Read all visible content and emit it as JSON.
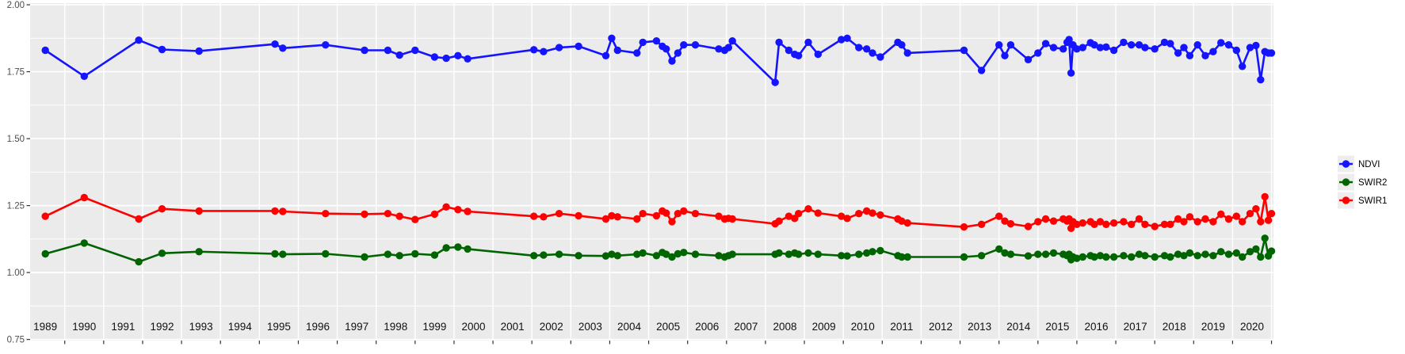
{
  "chart": {
    "panel_bg": "#EBEBEB",
    "grid_color": "#FFFFFF",
    "axis_text_color": "#4D4D4D",
    "x_label_color": "#111111",
    "tick_color": "#333333",
    "legend_key_bg": "#EDEDED",
    "legend_text_color": "#000000"
  },
  "chart_data": {
    "type": "line",
    "title": "",
    "xlabel": "",
    "ylabel": "",
    "grid": true,
    "legend_position": "right",
    "xlim": [
      1988.61,
      2020.55
    ],
    "ylim": [
      0.746,
      2.006
    ],
    "y_ticks": [
      {
        "label": "2.00",
        "value": 2.0
      },
      {
        "label": "1.75",
        "value": 1.75
      },
      {
        "label": "1.50",
        "value": 1.5
      },
      {
        "label": "1.25",
        "value": 1.25
      },
      {
        "label": "1.00",
        "value": 1.0
      },
      {
        "label": "0.75",
        "value": 0.75
      }
    ],
    "y_minor": [
      1.875,
      1.625,
      1.375,
      1.125,
      0.875
    ],
    "x_tick_labels": [
      "1989",
      "1990",
      "1991",
      "1992",
      "1993",
      "1994",
      "1995",
      "1996",
      "1997",
      "1998",
      "1999",
      "2000",
      "2001",
      "2002",
      "2003",
      "2004",
      "2005",
      "2006",
      "2007",
      "2008",
      "2009",
      "2010",
      "2011",
      "2012",
      "2013",
      "2014",
      "2015",
      "2016",
      "2017",
      "2018",
      "2019",
      "2020"
    ],
    "x_tick_centers": [
      1989,
      1990,
      1991,
      1992,
      1993,
      1994,
      1995,
      1996,
      1997,
      1998,
      1999,
      2000,
      2001,
      2002,
      2003,
      2004,
      2005,
      2006,
      2007,
      2008,
      2009,
      2010,
      2011,
      2012,
      2013,
      2014,
      2015,
      2016,
      2017,
      2018,
      2019,
      2020
    ],
    "x_gridline_positions": [
      1989.5,
      1990.5,
      1991.5,
      1992.5,
      1993.5,
      1994.5,
      1995.5,
      1996.5,
      1997.5,
      1998.5,
      1999.5,
      2000.5,
      2001.5,
      2002.5,
      2003.5,
      2004.5,
      2005.5,
      2006.5,
      2007.5,
      2008.5,
      2009.5,
      2010.5,
      2011.5,
      2012.5,
      2013.5,
      2014.5,
      2015.5,
      2016.5,
      2017.5,
      2018.5,
      2019.5,
      2020.5
    ],
    "x": [
      1989.0,
      1990.0,
      1991.4,
      1992.0,
      1992.95,
      1994.9,
      1995.1,
      1996.2,
      1997.2,
      1997.8,
      1998.1,
      1998.5,
      1999.0,
      1999.3,
      1999.6,
      1999.85,
      2001.55,
      2001.8,
      2002.2,
      2002.7,
      2003.4,
      2003.55,
      2003.7,
      2004.2,
      2004.35,
      2004.7,
      2004.85,
      2004.95,
      2005.1,
      2005.25,
      2005.4,
      2005.7,
      2006.3,
      2006.45,
      2006.55,
      2006.65,
      2007.75,
      2007.85,
      2008.1,
      2008.25,
      2008.35,
      2008.6,
      2008.85,
      2009.45,
      2009.6,
      2009.9,
      2010.1,
      2010.25,
      2010.45,
      2010.9,
      2011.0,
      2011.15,
      2012.6,
      2013.05,
      2013.5,
      2013.65,
      2013.8,
      2014.25,
      2014.5,
      2014.7,
      2014.9,
      2015.15,
      2015.25,
      2015.3,
      2015.35,
      2015.4,
      2015.5,
      2015.65,
      2015.85,
      2015.95,
      2016.1,
      2016.25,
      2016.45,
      2016.7,
      2016.9,
      2017.1,
      2017.25,
      2017.5,
      2017.75,
      2017.9,
      2018.1,
      2018.25,
      2018.4,
      2018.6,
      2018.8,
      2019.0,
      2019.2,
      2019.4,
      2019.6,
      2019.75,
      2019.95,
      2020.1,
      2020.22,
      2020.33,
      2020.42,
      2020.5
    ],
    "series": [
      {
        "name": "NDVI",
        "color": "#1414FF",
        "values": [
          1.83,
          1.733,
          1.868,
          1.833,
          1.827,
          1.853,
          1.838,
          1.85,
          1.83,
          1.83,
          1.812,
          1.83,
          1.805,
          1.8,
          1.81,
          1.798,
          1.832,
          1.825,
          1.84,
          1.845,
          1.81,
          1.875,
          1.83,
          1.82,
          1.86,
          1.865,
          1.845,
          1.835,
          1.79,
          1.82,
          1.85,
          1.85,
          1.835,
          1.83,
          1.84,
          1.865,
          1.71,
          1.86,
          1.83,
          1.815,
          1.81,
          1.86,
          1.815,
          1.87,
          1.875,
          1.84,
          1.835,
          1.82,
          1.805,
          1.86,
          1.85,
          1.82,
          1.83,
          1.755,
          1.85,
          1.81,
          1.85,
          1.795,
          1.82,
          1.855,
          1.84,
          1.835,
          1.86,
          1.87,
          1.745,
          1.85,
          1.835,
          1.84,
          1.858,
          1.85,
          1.84,
          1.842,
          1.83,
          1.86,
          1.85,
          1.85,
          1.84,
          1.835,
          1.86,
          1.855,
          1.82,
          1.84,
          1.81,
          1.85,
          1.81,
          1.825,
          1.858,
          1.85,
          1.83,
          1.77,
          1.84,
          1.848,
          1.72,
          1.825,
          1.82,
          1.82
        ]
      },
      {
        "name": "SWIR2",
        "color": "#006400",
        "values": [
          1.07,
          1.11,
          1.04,
          1.072,
          1.078,
          1.07,
          1.068,
          1.07,
          1.058,
          1.068,
          1.063,
          1.07,
          1.065,
          1.092,
          1.095,
          1.088,
          1.063,
          1.065,
          1.068,
          1.063,
          1.062,
          1.068,
          1.063,
          1.068,
          1.073,
          1.063,
          1.075,
          1.068,
          1.058,
          1.07,
          1.075,
          1.068,
          1.063,
          1.058,
          1.063,
          1.068,
          1.068,
          1.073,
          1.068,
          1.073,
          1.068,
          1.073,
          1.068,
          1.063,
          1.062,
          1.068,
          1.073,
          1.078,
          1.082,
          1.063,
          1.058,
          1.058,
          1.058,
          1.063,
          1.088,
          1.073,
          1.068,
          1.062,
          1.068,
          1.068,
          1.073,
          1.068,
          1.063,
          1.068,
          1.048,
          1.058,
          1.053,
          1.058,
          1.063,
          1.058,
          1.063,
          1.058,
          1.058,
          1.063,
          1.058,
          1.068,
          1.063,
          1.058,
          1.063,
          1.058,
          1.068,
          1.063,
          1.073,
          1.063,
          1.068,
          1.063,
          1.078,
          1.068,
          1.073,
          1.058,
          1.078,
          1.088,
          1.058,
          1.128,
          1.062,
          1.08
        ]
      },
      {
        "name": "SWIR1",
        "color": "#FF0000",
        "values": [
          1.21,
          1.28,
          1.2,
          1.238,
          1.23,
          1.23,
          1.228,
          1.22,
          1.218,
          1.22,
          1.21,
          1.198,
          1.218,
          1.245,
          1.235,
          1.228,
          1.21,
          1.208,
          1.22,
          1.212,
          1.2,
          1.212,
          1.208,
          1.2,
          1.22,
          1.212,
          1.23,
          1.222,
          1.19,
          1.22,
          1.23,
          1.22,
          1.21,
          1.2,
          1.202,
          1.2,
          1.182,
          1.192,
          1.21,
          1.202,
          1.22,
          1.238,
          1.222,
          1.21,
          1.202,
          1.22,
          1.23,
          1.222,
          1.215,
          1.2,
          1.192,
          1.185,
          1.17,
          1.18,
          1.21,
          1.192,
          1.182,
          1.172,
          1.19,
          1.2,
          1.192,
          1.2,
          1.192,
          1.2,
          1.165,
          1.19,
          1.18,
          1.185,
          1.19,
          1.18,
          1.19,
          1.18,
          1.185,
          1.19,
          1.18,
          1.2,
          1.18,
          1.172,
          1.18,
          1.18,
          1.2,
          1.19,
          1.208,
          1.19,
          1.2,
          1.19,
          1.218,
          1.2,
          1.21,
          1.19,
          1.22,
          1.238,
          1.19,
          1.283,
          1.195,
          1.22
        ]
      }
    ],
    "legend_entries": [
      "NDVI",
      "SWIR2",
      "SWIR1"
    ]
  }
}
